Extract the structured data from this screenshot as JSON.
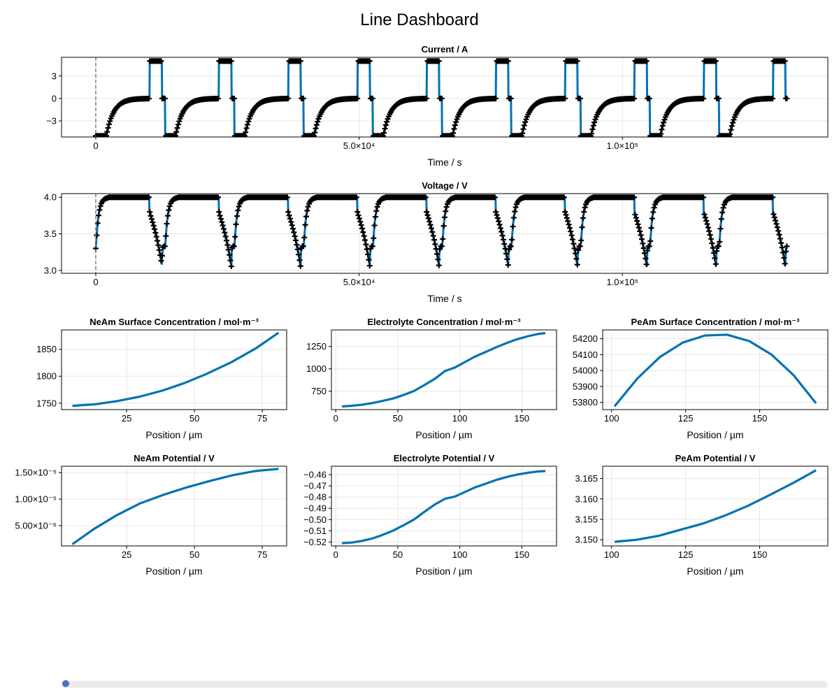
{
  "page_title": "Line Dashboard",
  "slider": {
    "value": 0
  },
  "colors": {
    "line": "#0072b2",
    "marker": "#000000",
    "grid": "#e6e6e6",
    "cursor": "#808080"
  },
  "chart_data": [
    {
      "id": "current",
      "type": "line",
      "title": "Current  /  A",
      "xlabel": "Time  /  s",
      "ylabel": "",
      "xlim": [
        -6500,
        139000
      ],
      "ylim": [
        -5.15,
        5.5
      ],
      "xticks": [
        0,
        50000,
        100000
      ],
      "xtick_labels": [
        "0",
        "5.0×10⁴",
        "1.0×10⁵"
      ],
      "yticks": [
        -3,
        0,
        3
      ],
      "ytick_labels": [
        "−3",
        "0",
        "3"
      ],
      "cursor_x": 0,
      "cycles": 10,
      "cycle_period": 13150,
      "series": [
        {
          "kind": "cycling_current",
          "segments": [
            {
              "phase": "charge_cc",
              "start": 0,
              "end": 2000,
              "value": -5
            },
            {
              "phase": "charge_cv_relax",
              "start": 2000,
              "end": 10200,
              "from": -5,
              "to": 0
            },
            {
              "phase": "discharge",
              "start": 10200,
              "end": 12600,
              "value": 5
            },
            {
              "phase": "rest",
              "start": 12600,
              "end": 13000,
              "value": 0
            }
          ]
        }
      ]
    },
    {
      "id": "voltage",
      "type": "line",
      "title": "Voltage  /  V",
      "xlabel": "Time  /  s",
      "ylabel": "",
      "xlim": [
        -6500,
        139000
      ],
      "ylim": [
        2.96,
        4.05
      ],
      "xticks": [
        0,
        50000,
        100000
      ],
      "xtick_labels": [
        "0",
        "5.0×10⁴",
        "1.0×10⁵"
      ],
      "yticks": [
        3.0,
        3.5,
        4.0
      ],
      "ytick_labels": [
        "3.0",
        "3.5",
        "4.0"
      ],
      "cursor_x": 0,
      "cycles": 10,
      "cycle_period": 13150,
      "series": [
        {
          "kind": "cycling_voltage",
          "segments": [
            {
              "phase": "charge_rise",
              "start": 0,
              "end": 2000,
              "from": 3.2,
              "to": 4.0
            },
            {
              "phase": "cv_hold",
              "start": 2000,
              "end": 10200,
              "value": 4.0
            },
            {
              "phase": "discharge_fall",
              "start": 10200,
              "end": 12600,
              "from": 3.8,
              "to": 3.0
            },
            {
              "phase": "rest_recover",
              "start": 12600,
              "end": 13000,
              "from": 3.2,
              "to": 3.35
            }
          ]
        }
      ]
    },
    {
      "id": "neam_conc",
      "type": "line",
      "title": "NeAm Surface Concentration  /  mol·m⁻³",
      "xlabel": "Position  /  µm",
      "xlim": [
        1,
        84
      ],
      "ylim": [
        1738,
        1886
      ],
      "xticks": [
        25,
        50,
        75
      ],
      "yticks": [
        1750,
        1800,
        1850
      ],
      "x": [
        5,
        13.5,
        21.7,
        29.8,
        38,
        46.1,
        54.3,
        63.6,
        72.7,
        81
      ],
      "y": [
        1745,
        1748,
        1754,
        1762,
        1773,
        1787,
        1804,
        1826,
        1852,
        1881
      ]
    },
    {
      "id": "elyte_conc",
      "type": "line",
      "title": "Electrolyte Concentration  /  mol·m⁻³",
      "xlabel": "Position  /  µm",
      "xlim": [
        -3.5,
        178
      ],
      "ylim": [
        545,
        1435
      ],
      "xticks": [
        0,
        50,
        100,
        150
      ],
      "yticks": [
        750,
        1000,
        1250
      ],
      "x": [
        5,
        13,
        21,
        29,
        37,
        46,
        54,
        63,
        71,
        80,
        88,
        96,
        104,
        112,
        121,
        130,
        138,
        146,
        155,
        163,
        169
      ],
      "y": [
        580,
        588,
        600,
        617,
        640,
        668,
        705,
        753,
        815,
        890,
        975,
        1015,
        1075,
        1135,
        1190,
        1245,
        1290,
        1330,
        1365,
        1390,
        1400
      ]
    },
    {
      "id": "peam_conc",
      "type": "line",
      "title": "PeAm Surface Concentration  /  mol·m⁻³",
      "xlabel": "Position  /  µm",
      "xlim": [
        97,
        173
      ],
      "ylim": [
        53755,
        54255
      ],
      "xticks": [
        100,
        125,
        150
      ],
      "yticks": [
        53800,
        53900,
        54000,
        54100,
        54200
      ],
      "x": [
        101,
        108.7,
        116.3,
        124,
        131.5,
        139,
        146.5,
        154,
        161.5,
        169
      ],
      "y": [
        53775,
        53950,
        54085,
        54175,
        54220,
        54225,
        54185,
        54100,
        53970,
        53795
      ]
    },
    {
      "id": "neam_pot",
      "type": "line",
      "title": "NeAm Potential  /  V",
      "xlabel": "Position  /  µm",
      "xlim": [
        1,
        84
      ],
      "ylim": [
        1.18e-06,
        1.62e-05
      ],
      "xticks": [
        25,
        50,
        75
      ],
      "yticks": [
        5e-06,
        1e-05,
        1.5e-05
      ],
      "ytick_labels": [
        "5.00×10⁻⁶",
        "1.00×10⁻⁵",
        "1.50×10⁻⁵"
      ],
      "x": [
        5,
        13,
        21.5,
        30,
        38.5,
        47,
        55.5,
        64,
        72.5,
        81
      ],
      "y": [
        1.5e-06,
        4.4e-06,
        7e-06,
        9.2e-06,
        1.08e-05,
        1.22e-05,
        1.34e-05,
        1.45e-05,
        1.53e-05,
        1.57e-05
      ]
    },
    {
      "id": "elyte_pot",
      "type": "line",
      "title": "Electrolyte Potential  /  V",
      "xlabel": "Position  /  µm",
      "xlim": [
        -3.5,
        178
      ],
      "ylim": [
        -0.5235,
        -0.4525
      ],
      "xticks": [
        0,
        50,
        100,
        150
      ],
      "yticks": [
        -0.52,
        -0.51,
        -0.5,
        -0.49,
        -0.48,
        -0.47,
        -0.46
      ],
      "ytick_labels": [
        "−0.52",
        "−0.51",
        "−0.50",
        "−0.49",
        "−0.48",
        "−0.47",
        "−0.46"
      ],
      "x": [
        5,
        13,
        21,
        29,
        37,
        46,
        54,
        63,
        71,
        80,
        88,
        96,
        104,
        112,
        121,
        130,
        138,
        146,
        155,
        163,
        169
      ],
      "y": [
        -0.521,
        -0.5205,
        -0.519,
        -0.517,
        -0.514,
        -0.51,
        -0.5055,
        -0.5,
        -0.4935,
        -0.4865,
        -0.4815,
        -0.4795,
        -0.4755,
        -0.4715,
        -0.468,
        -0.4645,
        -0.462,
        -0.46,
        -0.4583,
        -0.4572,
        -0.4568
      ]
    },
    {
      "id": "peam_pot",
      "type": "line",
      "title": "PeAm Potential  /  V",
      "xlabel": "Position  /  µm",
      "xlim": [
        97,
        173
      ],
      "ylim": [
        3.1485,
        3.168
      ],
      "xticks": [
        100,
        125,
        150
      ],
      "yticks": [
        3.15,
        3.155,
        3.16,
        3.165
      ],
      "ytick_labels": [
        "3.150",
        "3.155",
        "3.160",
        "3.165"
      ],
      "x": [
        101,
        108.5,
        116,
        123.5,
        131,
        138.5,
        146,
        153.5,
        161,
        169
      ],
      "y": [
        3.1495,
        3.15,
        3.151,
        3.1525,
        3.154,
        3.156,
        3.1583,
        3.161,
        3.1638,
        3.167
      ]
    }
  ]
}
